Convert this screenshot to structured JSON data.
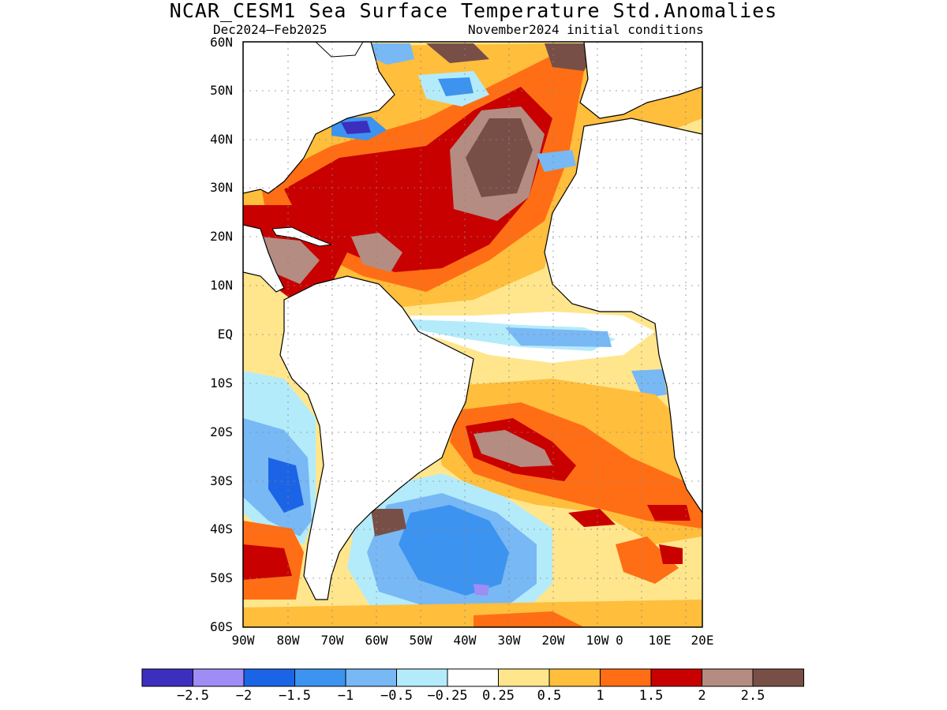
{
  "header": {
    "title": "NCAR_CESM1 Sea Surface Temperature Std.Anomalies",
    "period": "Dec2024–Feb2025",
    "init": "November2024 initial conditions"
  },
  "map": {
    "lat_labels": [
      "60N",
      "50N",
      "40N",
      "30N",
      "20N",
      "10N",
      "EQ",
      "10S",
      "20S",
      "30S",
      "40S",
      "50S",
      "60S"
    ],
    "lon_labels": [
      "90W",
      "80W",
      "70W",
      "60W",
      "50W",
      "40W",
      "30W",
      "20W",
      "10W",
      "0",
      "10E",
      "20E"
    ],
    "land_color": "#ffffff",
    "coast_color": "#000000"
  },
  "colorbar": {
    "colors": [
      "#3c2fbe",
      "#9f8cf5",
      "#1c64e6",
      "#3c93f0",
      "#78b8f5",
      "#b4ebfa",
      "#ffffff",
      "#ffe68c",
      "#ffbe3c",
      "#ff6e14",
      "#c80000",
      "#b48c82",
      "#784f46"
    ],
    "labels": [
      "−2.5",
      "−2",
      "−1.5",
      "−1",
      "−0.5",
      "−0.25",
      "0.25",
      "0.5",
      "1",
      "1.5",
      "2",
      "2.5"
    ]
  }
}
